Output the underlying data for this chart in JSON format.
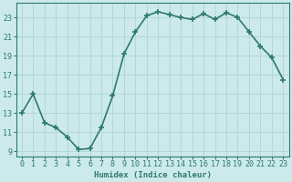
{
  "x": [
    0,
    1,
    2,
    3,
    4,
    5,
    6,
    7,
    8,
    9,
    10,
    11,
    12,
    13,
    14,
    15,
    16,
    17,
    18,
    19,
    20,
    21,
    22,
    23
  ],
  "y": [
    13,
    15,
    12,
    11.5,
    10.5,
    9.2,
    9.3,
    11.5,
    14.8,
    19.2,
    21.5,
    23.2,
    23.6,
    23.3,
    23.0,
    22.8,
    23.4,
    22.8,
    23.5,
    23.0,
    21.5,
    20.0,
    18.8,
    16.5
  ],
  "line_color": "#2d7a6e",
  "marker": "+",
  "marker_size": 4,
  "bg_color": "#cceaea",
  "grid_color": "#b0d4d4",
  "xlabel": "Humidex (Indice chaleur)",
  "xlim": [
    -0.5,
    23.5
  ],
  "ylim": [
    8.5,
    24.5
  ],
  "yticks": [
    9,
    11,
    13,
    15,
    17,
    19,
    21,
    23
  ],
  "xticks": [
    0,
    1,
    2,
    3,
    4,
    5,
    6,
    7,
    8,
    9,
    10,
    11,
    12,
    13,
    14,
    15,
    16,
    17,
    18,
    19,
    20,
    21,
    22,
    23
  ],
  "tick_color": "#2d7a6e",
  "label_fontsize": 6.5,
  "tick_fontsize": 6.0,
  "linewidth": 1.2
}
